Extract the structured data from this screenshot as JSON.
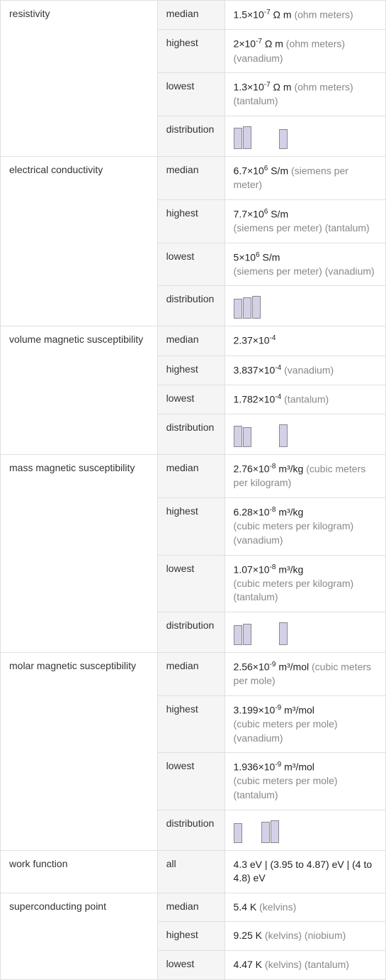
{
  "properties": [
    {
      "name": "resistivity",
      "rows": [
        {
          "label": "median",
          "value": "1.5×10",
          "exp": "-7",
          "unit": " Ω m ",
          "extra": "(ohm meters)"
        },
        {
          "label": "highest",
          "value": "2×10",
          "exp": "-7",
          "unit": " Ω m ",
          "extra": "(ohm meters) (vanadium)"
        },
        {
          "label": "lowest",
          "value": "1.3×10",
          "exp": "-7",
          "unit": " Ω m ",
          "extra": "(ohm meters) (tantalum)"
        },
        {
          "label": "distribution",
          "dist": [
            [
              30,
              32
            ],
            [
              28
            ]
          ],
          "gap": 26
        }
      ]
    },
    {
      "name": "electrical conductivity",
      "rows": [
        {
          "label": "median",
          "value": "6.7×10",
          "exp": "6",
          "unit": " S/m ",
          "extra": "(siemens per meter)"
        },
        {
          "label": "highest",
          "value": "7.7×10",
          "exp": "6",
          "unit": " S/m",
          "extra": "(siemens per meter) (tantalum)",
          "multiline": true
        },
        {
          "label": "lowest",
          "value": "5×10",
          "exp": "6",
          "unit": " S/m",
          "extra": "(siemens per meter) (vanadium)",
          "multiline": true
        },
        {
          "label": "distribution",
          "dist": [
            [
              28,
              30,
              32
            ]
          ],
          "gap": 0
        }
      ]
    },
    {
      "name": "volume magnetic susceptibility",
      "rows": [
        {
          "label": "median",
          "value": "2.37×10",
          "exp": "-4",
          "unit": "",
          "extra": ""
        },
        {
          "label": "highest",
          "value": "3.837×10",
          "exp": "-4",
          "unit": " ",
          "extra": " (vanadium)"
        },
        {
          "label": "lowest",
          "value": "1.782×10",
          "exp": "-4",
          "unit": " ",
          "extra": " (tantalum)"
        },
        {
          "label": "distribution",
          "dist": [
            [
              30,
              28
            ],
            [
              32
            ]
          ],
          "gap": 26
        }
      ]
    },
    {
      "name": "mass magnetic susceptibility",
      "rows": [
        {
          "label": "median",
          "value": "2.76×10",
          "exp": "-8",
          "unit": " m³/kg ",
          "extra": "(cubic meters per kilogram)"
        },
        {
          "label": "highest",
          "value": "6.28×10",
          "exp": "-8",
          "unit": " m³/kg",
          "extra": "(cubic meters per kilogram) (vanadium)",
          "multiline": true
        },
        {
          "label": "lowest",
          "value": "1.07×10",
          "exp": "-8",
          "unit": " m³/kg",
          "extra": "(cubic meters per kilogram) (tantalum)",
          "multiline": true
        },
        {
          "label": "distribution",
          "dist": [
            [
              28,
              30
            ],
            [
              32
            ]
          ],
          "gap": 26
        }
      ]
    },
    {
      "name": "molar magnetic susceptibility",
      "rows": [
        {
          "label": "median",
          "value": "2.56×10",
          "exp": "-9",
          "unit": " m³/mol ",
          "extra": "(cubic meters per mole)"
        },
        {
          "label": "highest",
          "value": "3.199×10",
          "exp": "-9",
          "unit": " m³/mol",
          "extra": "(cubic meters per mole) (vanadium)",
          "multiline": true
        },
        {
          "label": "lowest",
          "value": "1.936×10",
          "exp": "-9",
          "unit": " m³/mol",
          "extra": "(cubic meters per mole) (tantalum)",
          "multiline": true
        },
        {
          "label": "distribution",
          "dist": [
            [
              28
            ],
            [
              30,
              32
            ]
          ],
          "gap": 14
        }
      ]
    },
    {
      "name": "work function",
      "rows": [
        {
          "label": "all",
          "raw": "4.3 eV  |  (3.95 to 4.87) eV  |  (4 to 4.8) eV"
        }
      ]
    },
    {
      "name": "superconducting point",
      "rows": [
        {
          "label": "median",
          "value": "5.4 K ",
          "exp": "",
          "unit": "",
          "extra": "(kelvins)"
        },
        {
          "label": "highest",
          "value": "9.25 K ",
          "exp": "",
          "unit": "",
          "extra": "(kelvins) (niobium)"
        },
        {
          "label": "lowest",
          "value": "4.47 K ",
          "exp": "",
          "unit": "",
          "extra": "(kelvins) (tantalum)"
        }
      ]
    }
  ],
  "colors": {
    "bar_fill": "#d4d0e8",
    "bar_border": "#888888",
    "header_bg": "#f5f5f5",
    "border": "#e0e0e0",
    "text": "#222222",
    "unit_text": "#888888"
  }
}
